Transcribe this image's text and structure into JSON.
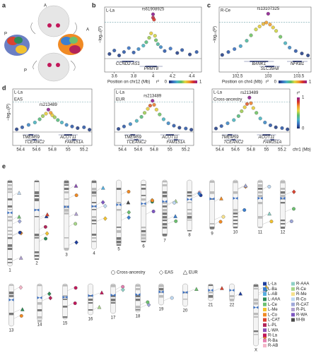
{
  "figure": {
    "panel_labels": [
      "a",
      "b",
      "c",
      "d",
      "e"
    ],
    "brain_labels": [
      "A",
      "P",
      "A",
      "P"
    ]
  },
  "chart_data": [
    {
      "type": "scatter",
      "title": "L-La",
      "annotation": "rs61908925",
      "y_label": "−log₁₀(P)",
      "x_label": "Position on chr12 (Mb)",
      "xlim": [
        3.5,
        4.5
      ],
      "xticks": [
        3.6,
        3.8,
        4.0,
        4.2,
        4.4
      ],
      "ylim": [
        0,
        9.5
      ],
      "threshold": 7.3,
      "x": [
        3.55,
        3.6,
        3.65,
        3.7,
        3.75,
        3.8,
        3.85,
        3.9,
        3.93,
        3.96,
        3.98,
        4.0,
        4.0,
        4.01,
        4.02,
        4.03,
        4.05,
        4.08,
        4.12,
        4.18,
        4.25,
        4.3,
        4.38,
        4.45
      ],
      "values": [
        0.8,
        1.5,
        0.5,
        1.2,
        2.0,
        1.1,
        1.8,
        2.5,
        3.2,
        4.1,
        5.0,
        8.9,
        8.2,
        7.8,
        4.5,
        3.6,
        2.8,
        2.2,
        1.4,
        1.9,
        1.0,
        1.6,
        0.7,
        1.2
      ],
      "r2": [
        0.05,
        0.1,
        0.05,
        0.1,
        0.15,
        0.1,
        0.2,
        0.3,
        0.4,
        0.5,
        0.6,
        1,
        0.9,
        0.85,
        0.55,
        0.45,
        0.35,
        0.2,
        0.1,
        0.15,
        0.05,
        0.1,
        0.05,
        0.1
      ],
      "genes": [
        {
          "name": "CCND2-AS1",
          "start": 3.68,
          "end": 3.8
        },
        {
          "name": "PRMT8",
          "start": 3.92,
          "end": 4.04
        }
      ],
      "colorbar": {
        "label": "r²",
        "ticks": [
          0,
          1
        ]
      }
    },
    {
      "type": "scatter",
      "title": "R-Ce",
      "annotation": "rs13107325",
      "y_label": "−log₁₀(P)",
      "x_label": "Position on chr4 (Mb)",
      "xlim": [
        102.2,
        103.7
      ],
      "xticks": [
        102.5,
        103,
        103.5
      ],
      "ylim": [
        0,
        9.5
      ],
      "threshold": 7.3,
      "x": [
        102.25,
        102.35,
        102.45,
        102.55,
        102.65,
        102.72,
        102.8,
        102.86,
        102.92,
        102.97,
        103.0,
        103.03,
        103.08,
        103.13,
        103.2,
        103.28,
        103.35,
        103.45,
        103.55,
        103.65
      ],
      "values": [
        0.6,
        1.2,
        1.8,
        2.4,
        3.5,
        4.6,
        5.8,
        6.4,
        6.9,
        7.2,
        9.0,
        6.8,
        6.2,
        5.5,
        4.3,
        3.0,
        2.1,
        1.4,
        0.9,
        0.5
      ],
      "r2": [
        0.05,
        0.1,
        0.15,
        0.25,
        0.35,
        0.45,
        0.55,
        0.6,
        0.65,
        0.7,
        1,
        0.7,
        0.6,
        0.55,
        0.45,
        0.3,
        0.2,
        0.1,
        0.05,
        0.05
      ],
      "genes": [
        {
          "name": "BANK1",
          "start": 102.7,
          "end": 103.0
        },
        {
          "name": "SLC39A8",
          "start": 102.95,
          "end": 103.1
        },
        {
          "name": "NFKB1",
          "start": 103.4,
          "end": 103.55
        }
      ],
      "colorbar": {
        "label": "r²",
        "ticks": [
          0,
          1
        ]
      }
    },
    {
      "type": "scatter",
      "title": "L-La",
      "subtitle": "EAS",
      "annotation": "rs213489",
      "y_label": "−log₁₀(P)",
      "xlim": [
        54.3,
        55.3
      ],
      "xticks": [
        54.4,
        54.6,
        54.8,
        55.0,
        55.2
      ],
      "ylim": [
        0,
        9.5
      ],
      "threshold": 7.3,
      "x": [
        54.35,
        54.42,
        54.5,
        54.58,
        54.64,
        54.68,
        54.72,
        54.75,
        54.78,
        54.8,
        54.83,
        54.87,
        54.92,
        54.98,
        55.05,
        55.12,
        55.2,
        55.27
      ],
      "values": [
        0.5,
        1.0,
        1.6,
        2.2,
        3.0,
        3.8,
        4.4,
        5.4,
        4.6,
        4.0,
        3.5,
        2.8,
        2.2,
        1.6,
        1.2,
        0.8,
        1.0,
        0.4
      ],
      "r2": [
        0.05,
        0.1,
        0.2,
        0.3,
        0.4,
        0.5,
        0.6,
        1,
        0.7,
        0.6,
        0.5,
        0.4,
        0.3,
        0.2,
        0.1,
        0.05,
        0.1,
        0.05
      ],
      "genes": [
        {
          "name": "TMEM59",
          "start": 54.5,
          "end": 54.56
        },
        {
          "name": "TCEANC2",
          "start": 54.55,
          "end": 54.6
        },
        {
          "name": "ACOT11",
          "start": 54.95,
          "end": 55.05
        },
        {
          "name": "FAM151A",
          "start": 55.05,
          "end": 55.1
        }
      ]
    },
    {
      "type": "scatter",
      "title": "L-La",
      "subtitle": "EUR",
      "annotation": "rs213489",
      "xlim": [
        54.3,
        55.3
      ],
      "xticks": [
        54.4,
        54.6,
        54.8,
        55.0,
        55.2
      ],
      "ylim": [
        0,
        9.5
      ],
      "threshold": 7.3,
      "x": [
        54.35,
        54.42,
        54.5,
        54.58,
        54.64,
        54.68,
        54.72,
        54.75,
        54.78,
        54.8,
        54.83,
        54.87,
        54.92,
        54.98,
        55.05,
        55.12,
        55.2,
        55.27
      ],
      "values": [
        0.6,
        1.2,
        1.8,
        2.6,
        3.6,
        4.6,
        5.6,
        6.4,
        7.6,
        6.6,
        5.4,
        4.2,
        3.0,
        2.0,
        1.4,
        0.9,
        0.7,
        0.4
      ],
      "r2": [
        0.05,
        0.1,
        0.2,
        0.3,
        0.4,
        0.5,
        0.6,
        0.8,
        1,
        0.75,
        0.6,
        0.45,
        0.3,
        0.2,
        0.1,
        0.05,
        0.1,
        0.05
      ],
      "genes": [
        {
          "name": "TMEM59",
          "start": 54.5,
          "end": 54.56
        },
        {
          "name": "TCEANC2",
          "start": 54.55,
          "end": 54.6
        },
        {
          "name": "ACOT11",
          "start": 54.95,
          "end": 55.05
        },
        {
          "name": "FAM151A",
          "start": 55.05,
          "end": 55.1
        }
      ]
    },
    {
      "type": "scatter",
      "title": "L-La",
      "subtitle": "Cross-ancestry",
      "annotation": "rs213489",
      "x_label": "chr1 (Mb)",
      "xlim": [
        54.3,
        55.3
      ],
      "xticks": [
        54.4,
        54.6,
        54.8,
        55.0,
        55.2
      ],
      "ylim": [
        0,
        9.5
      ],
      "threshold": 7.3,
      "x": [
        54.35,
        54.42,
        54.5,
        54.58,
        54.64,
        54.68,
        54.72,
        54.75,
        54.78,
        54.8,
        54.83,
        54.87,
        54.92,
        54.98,
        55.05,
        55.12,
        55.2,
        55.27
      ],
      "values": [
        0.7,
        1.3,
        2.0,
        2.8,
        3.8,
        5.0,
        6.0,
        6.8,
        8.4,
        7.0,
        5.8,
        4.6,
        3.2,
        2.2,
        1.5,
        1.0,
        0.8,
        0.5
      ],
      "r2": [
        0.05,
        0.1,
        0.2,
        0.3,
        0.4,
        0.5,
        0.6,
        0.8,
        1,
        0.75,
        0.6,
        0.45,
        0.3,
        0.2,
        0.1,
        0.05,
        0.1,
        0.05
      ],
      "genes": [
        {
          "name": "TMEM59",
          "start": 54.5,
          "end": 54.56
        },
        {
          "name": "TCEANC2",
          "start": 54.55,
          "end": 54.6
        },
        {
          "name": "ACOT11",
          "start": 54.95,
          "end": 55.05
        },
        {
          "name": "FAM151A",
          "start": 55.05,
          "end": 55.1
        }
      ],
      "colorbar": {
        "label": "r²",
        "ticks": [
          0,
          1
        ]
      }
    }
  ],
  "ideogram": {
    "chromosomes": [
      "1",
      "2",
      "3",
      "4",
      "5",
      "6",
      "7",
      "8",
      "9",
      "10",
      "11",
      "12",
      "13",
      "14",
      "15",
      "16",
      "17",
      "18",
      "19",
      "20",
      "21",
      "22",
      "X"
    ],
    "ancestry_legend": [
      "Cross-ancestry",
      "EAS",
      "EUR"
    ],
    "regions": [
      {
        "name": "L-La",
        "color": "#1f3f9e"
      },
      {
        "name": "L-Ba",
        "color": "#3b7fd0"
      },
      {
        "name": "L-AB",
        "color": "#56b0e0"
      },
      {
        "name": "L-AAA",
        "color": "#2e8b57"
      },
      {
        "name": "L-Ce",
        "color": "#6cc070"
      },
      {
        "name": "L-Me",
        "color": "#f2c230"
      },
      {
        "name": "L-Co",
        "color": "#f08a24"
      },
      {
        "name": "L-CAT",
        "color": "#d9432f"
      },
      {
        "name": "L-PL",
        "color": "#b3245a"
      },
      {
        "name": "L-WA",
        "color": "#8b4fb3"
      },
      {
        "name": "R-La",
        "color": "#c2185b"
      },
      {
        "name": "R-Ba",
        "color": "#e57fb0"
      },
      {
        "name": "R-AB",
        "color": "#f4b6c8"
      },
      {
        "name": "R-AAA",
        "color": "#8ed1c6"
      },
      {
        "name": "R-Ce",
        "color": "#a8d68a"
      },
      {
        "name": "R-Me",
        "color": "#f6e18b"
      },
      {
        "name": "R-Co",
        "color": "#bfd9f2"
      },
      {
        "name": "R-CAT",
        "color": "#9fa8da"
      },
      {
        "name": "R-PL",
        "color": "#b0a1d0"
      },
      {
        "name": "R-WA",
        "color": "#7e57c2"
      },
      {
        "name": "M-Bi",
        "color": "#4a4a4a"
      }
    ]
  }
}
